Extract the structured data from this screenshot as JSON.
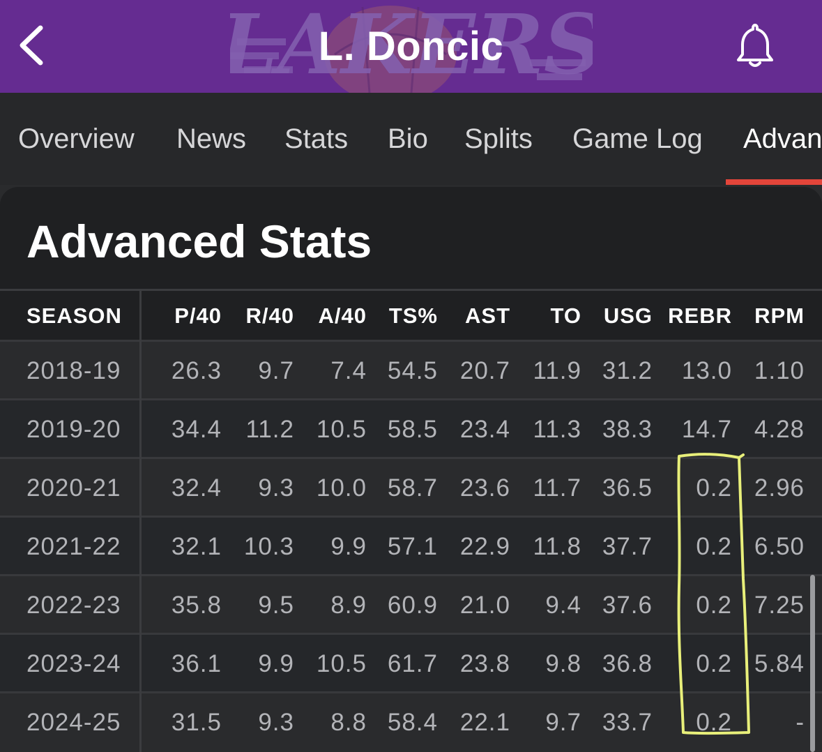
{
  "header": {
    "title": "L. Doncic",
    "back_icon": "chevron-left-icon",
    "bell_icon": "bell-icon",
    "background_color": "#652c91",
    "logo_text": "LAKERS"
  },
  "tabs": [
    {
      "label": "Overview"
    },
    {
      "label": "News"
    },
    {
      "label": "Stats"
    },
    {
      "label": "Bio"
    },
    {
      "label": "Splits"
    },
    {
      "label": "Game Log"
    },
    {
      "label": "Advan"
    }
  ],
  "active_tab": "Advanced",
  "accent_color": "#e3453a",
  "card": {
    "title": "Advanced Stats"
  },
  "table": {
    "columns": [
      "SEASON",
      "P/40",
      "R/40",
      "A/40",
      "TS%",
      "AST",
      "TO",
      "USG",
      "REBR",
      "RPM"
    ],
    "rows": [
      [
        "2018-19",
        "26.3",
        "9.7",
        "7.4",
        "54.5",
        "20.7",
        "11.9",
        "31.2",
        "13.0",
        "1.10"
      ],
      [
        "2019-20",
        "34.4",
        "11.2",
        "10.5",
        "58.5",
        "23.4",
        "11.3",
        "38.3",
        "14.7",
        "4.28"
      ],
      [
        "2020-21",
        "32.4",
        "9.3",
        "10.0",
        "58.7",
        "23.6",
        "11.7",
        "36.5",
        "0.2",
        "2.96"
      ],
      [
        "2021-22",
        "32.1",
        "10.3",
        "9.9",
        "57.1",
        "22.9",
        "11.8",
        "37.7",
        "0.2",
        "6.50"
      ],
      [
        "2022-23",
        "35.8",
        "9.5",
        "8.9",
        "60.9",
        "21.0",
        "9.4",
        "37.6",
        "0.2",
        "7.25"
      ],
      [
        "2023-24",
        "36.1",
        "9.9",
        "10.5",
        "61.7",
        "23.8",
        "9.8",
        "36.8",
        "0.2",
        "5.84"
      ],
      [
        "2024-25",
        "31.5",
        "9.3",
        "8.8",
        "58.4",
        "22.1",
        "9.7",
        "33.7",
        "0.2",
        "-"
      ]
    ]
  },
  "annotation": {
    "color": "#e8ef7a",
    "shape": "hand-drawn-rectangle"
  }
}
